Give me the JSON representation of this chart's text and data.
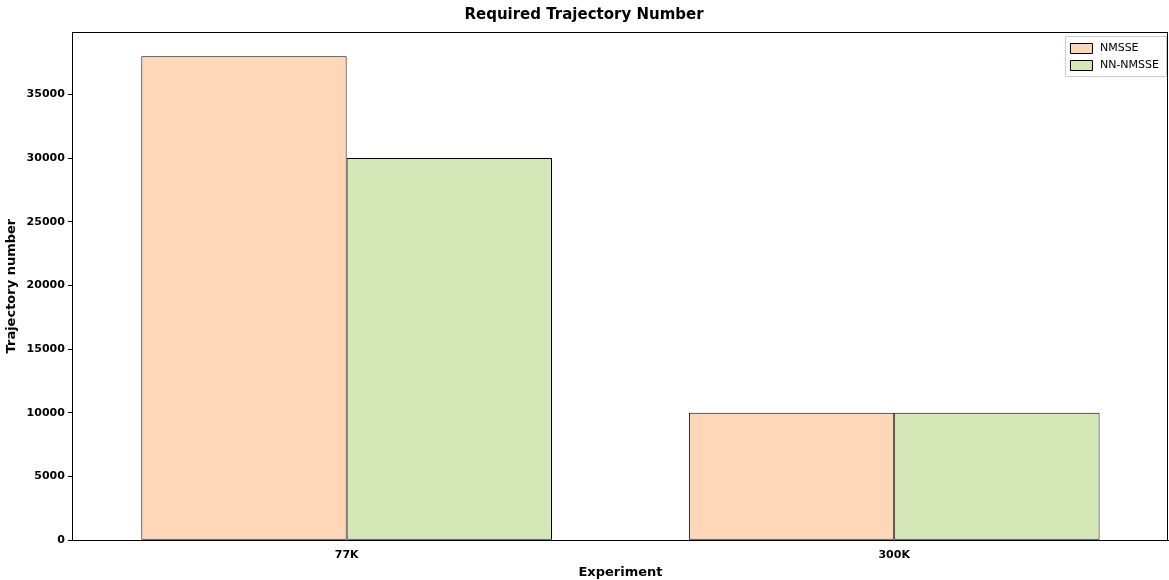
{
  "chart_data": {
    "type": "bar",
    "title": "Required Trajectory Number",
    "xlabel": "Experiment",
    "ylabel": "Trajectory number",
    "categories": [
      "77K",
      "300K"
    ],
    "series": [
      {
        "name": "NMSSE",
        "color": "#fdd7b8",
        "values": [
          38000,
          10000
        ]
      },
      {
        "name": "NN-NMSSE",
        "color": "#d5e6b7",
        "values": [
          30000,
          10000
        ]
      }
    ],
    "ylim": [
      0,
      39900
    ],
    "yticks": [
      0,
      5000,
      10000,
      15000,
      20000,
      25000,
      30000,
      35000
    ],
    "grid": false,
    "legend": "top right"
  }
}
